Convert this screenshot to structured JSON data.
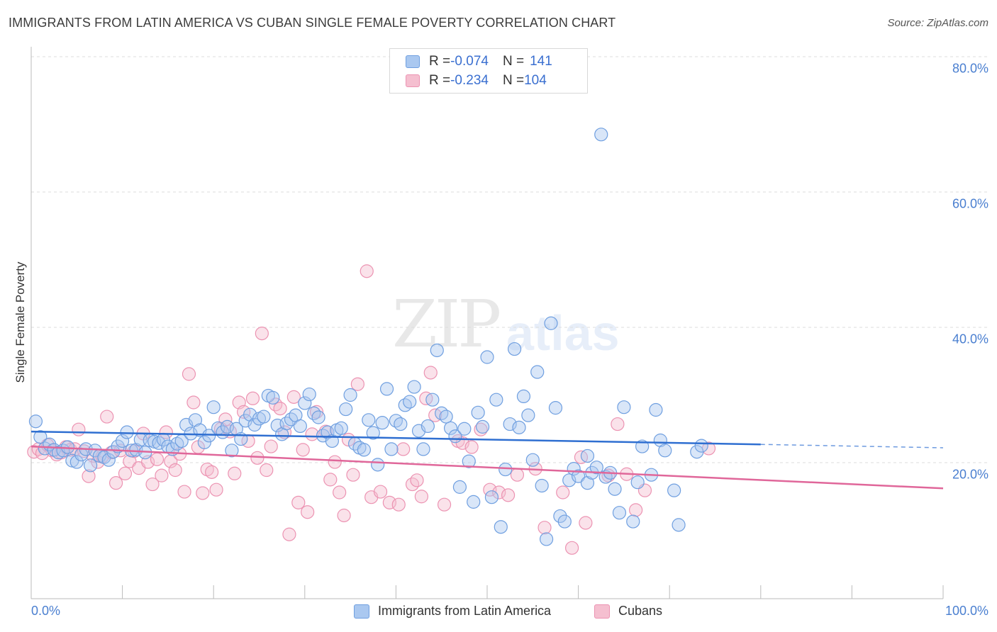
{
  "title": "IMMIGRANTS FROM LATIN AMERICA VS CUBAN SINGLE FEMALE POVERTY CORRELATION CHART",
  "source": "Source: ZipAtlas.com",
  "watermark": {
    "zip": "ZIP",
    "atlas": "atlas"
  },
  "legend_top": {
    "rows": [
      {
        "r_label": "R = ",
        "r_value": "-0.074",
        "n_label": "N = ",
        "n_value": "141"
      },
      {
        "r_label": "R = ",
        "r_value": "-0.234",
        "n_label": "N = ",
        "n_value": "104"
      }
    ]
  },
  "colors": {
    "blue_fill": "#aac8f0",
    "blue_stroke": "#6f9fe0",
    "blue_line": "#2f6fd1",
    "pink_fill": "#f5bfd0",
    "pink_stroke": "#ec93b2",
    "pink_line": "#e0679a",
    "grid": "#dddddd",
    "tick_text": "#4a7fd0"
  },
  "chart_data": {
    "type": "scatter",
    "title": "IMMIGRANTS FROM LATIN AMERICA VS CUBAN SINGLE FEMALE POVERTY CORRELATION CHART",
    "xlabel": "",
    "ylabel": "Single Female Poverty",
    "xlim": [
      0,
      100
    ],
    "ylim": [
      0,
      85
    ],
    "x_tick_labels": [
      "0.0%",
      "100.0%"
    ],
    "y_ticks": [
      20,
      40,
      60,
      80
    ],
    "y_tick_labels": [
      "20.0%",
      "40.0%",
      "60.0%",
      "80.0%"
    ],
    "grid": true,
    "legend_position": "bottom",
    "series": [
      {
        "name": "Immigrants from Latin America",
        "color": "#6f9fe0",
        "trend": {
          "x": [
            0,
            80
          ],
          "y": [
            24.6,
            22.7
          ],
          "dashed_extension_to": [
            100,
            22.2
          ]
        },
        "points": [
          [
            0.5,
            26.1
          ],
          [
            1,
            23.8
          ],
          [
            1.5,
            22.1
          ],
          [
            2,
            22.7
          ],
          [
            2.5,
            21.9
          ],
          [
            3,
            21.5
          ],
          [
            3.5,
            21.8
          ],
          [
            4,
            22.3
          ],
          [
            4.5,
            20.3
          ],
          [
            5,
            20.1
          ],
          [
            5.5,
            21.2
          ],
          [
            6,
            22.0
          ],
          [
            6.5,
            19.6
          ],
          [
            7,
            21.8
          ],
          [
            7.5,
            21.0
          ],
          [
            8,
            20.8
          ],
          [
            8.5,
            20.4
          ],
          [
            9,
            21.6
          ],
          [
            9.5,
            22.4
          ],
          [
            10,
            23.2
          ],
          [
            10.5,
            24.5
          ],
          [
            11,
            21.8
          ],
          [
            11.5,
            21.9
          ],
          [
            12,
            23.4
          ],
          [
            12.5,
            21.5
          ],
          [
            13,
            23.3
          ],
          [
            13.5,
            23.1
          ],
          [
            14,
            22.9
          ],
          [
            14.5,
            23.4
          ],
          [
            15,
            22.4
          ],
          [
            15.5,
            22.0
          ],
          [
            16,
            22.8
          ],
          [
            16.5,
            23.2
          ],
          [
            17,
            25.6
          ],
          [
            17.5,
            24.3
          ],
          [
            18,
            26.3
          ],
          [
            18.5,
            24.8
          ],
          [
            19,
            23.0
          ],
          [
            19.5,
            24.0
          ],
          [
            20,
            28.2
          ],
          [
            20.5,
            25.1
          ],
          [
            21,
            24.5
          ],
          [
            21.5,
            25.3
          ],
          [
            22,
            21.8
          ],
          [
            22.5,
            25.0
          ],
          [
            23,
            23.5
          ],
          [
            23.5,
            26.2
          ],
          [
            24,
            27.1
          ],
          [
            24.5,
            25.6
          ],
          [
            25,
            26.5
          ],
          [
            25.5,
            26.8
          ],
          [
            26,
            29.9
          ],
          [
            26.5,
            29.6
          ],
          [
            27,
            25.5
          ],
          [
            27.5,
            24.2
          ],
          [
            28,
            25.8
          ],
          [
            28.5,
            26.4
          ],
          [
            29,
            27.0
          ],
          [
            29.5,
            25.4
          ],
          [
            30,
            28.8
          ],
          [
            30.5,
            30.1
          ],
          [
            31,
            27.3
          ],
          [
            31.5,
            26.7
          ],
          [
            32,
            24.0
          ],
          [
            32.5,
            24.5
          ],
          [
            33,
            23.2
          ],
          [
            33.5,
            24.8
          ],
          [
            34,
            25.1
          ],
          [
            34.5,
            27.9
          ],
          [
            35,
            30.0
          ],
          [
            35.5,
            22.8
          ],
          [
            36,
            22.2
          ],
          [
            36.5,
            21.9
          ],
          [
            37,
            26.3
          ],
          [
            37.5,
            24.4
          ],
          [
            38,
            19.7
          ],
          [
            38.5,
            25.9
          ],
          [
            39,
            30.9
          ],
          [
            39.5,
            22.0
          ],
          [
            40,
            26.2
          ],
          [
            40.5,
            25.7
          ],
          [
            41,
            28.5
          ],
          [
            41.5,
            29.0
          ],
          [
            42,
            31.2
          ],
          [
            42.5,
            24.7
          ],
          [
            43,
            22.0
          ],
          [
            43.5,
            25.4
          ],
          [
            44,
            29.3
          ],
          [
            44.5,
            36.6
          ],
          [
            45,
            27.3
          ],
          [
            45.5,
            26.8
          ],
          [
            46,
            25.1
          ],
          [
            46.5,
            23.9
          ],
          [
            47,
            16.4
          ],
          [
            47.5,
            25.0
          ],
          [
            48,
            20.2
          ],
          [
            48.5,
            14.2
          ],
          [
            49,
            27.4
          ],
          [
            49.5,
            25.3
          ],
          [
            50,
            35.6
          ],
          [
            50.5,
            14.9
          ],
          [
            51,
            29.3
          ],
          [
            51.5,
            10.5
          ],
          [
            52,
            19.0
          ],
          [
            52.5,
            25.7
          ],
          [
            53,
            36.8
          ],
          [
            53.5,
            25.2
          ],
          [
            54,
            29.8
          ],
          [
            54.5,
            27.0
          ],
          [
            55,
            20.4
          ],
          [
            55.5,
            33.4
          ],
          [
            56,
            16.6
          ],
          [
            56.5,
            8.7
          ],
          [
            57,
            40.6
          ],
          [
            57.5,
            28.1
          ],
          [
            58,
            12.1
          ],
          [
            58.5,
            11.3
          ],
          [
            59,
            17.4
          ],
          [
            59.5,
            19.1
          ],
          [
            60,
            18.0
          ],
          [
            61,
            17.0
          ],
          [
            61.5,
            18.5
          ],
          [
            62,
            19.3
          ],
          [
            62.5,
            68.5
          ],
          [
            63,
            17.9
          ],
          [
            63.5,
            18.5
          ],
          [
            64,
            16.1
          ],
          [
            64.5,
            12.6
          ],
          [
            65,
            28.2
          ],
          [
            66,
            11.3
          ],
          [
            66.5,
            17.1
          ],
          [
            67,
            22.4
          ],
          [
            68,
            18.2
          ],
          [
            68.5,
            27.8
          ],
          [
            69,
            23.3
          ],
          [
            69.5,
            21.8
          ],
          [
            70.5,
            15.9
          ],
          [
            71,
            10.8
          ],
          [
            73,
            21.6
          ],
          [
            73.5,
            22.5
          ],
          [
            61,
            21.0
          ]
        ]
      },
      {
        "name": "Cubans",
        "color": "#ec93b2",
        "trend": {
          "x": [
            0,
            100
          ],
          "y": [
            22.4,
            16.2
          ]
        },
        "points": [
          [
            0.3,
            21.6
          ],
          [
            0.8,
            22.0
          ],
          [
            1.2,
            21.4
          ],
          [
            1.8,
            22.6
          ],
          [
            2.3,
            21.8
          ],
          [
            2.8,
            21.2
          ],
          [
            3.3,
            21.5
          ],
          [
            3.8,
            22.3
          ],
          [
            4.3,
            21.9
          ],
          [
            4.8,
            22.0
          ],
          [
            5.2,
            24.9
          ],
          [
            5.8,
            21.7
          ],
          [
            6.3,
            18.0
          ],
          [
            6.8,
            21.0
          ],
          [
            7.3,
            20.1
          ],
          [
            7.8,
            20.9
          ],
          [
            8.3,
            26.8
          ],
          [
            8.8,
            21.5
          ],
          [
            9.3,
            17.0
          ],
          [
            9.8,
            21.8
          ],
          [
            10.3,
            18.4
          ],
          [
            10.8,
            20.2
          ],
          [
            11.3,
            21.7
          ],
          [
            11.8,
            19.2
          ],
          [
            12.3,
            24.3
          ],
          [
            12.8,
            20.1
          ],
          [
            13.3,
            16.8
          ],
          [
            13.8,
            20.5
          ],
          [
            14.3,
            18.1
          ],
          [
            14.8,
            24.5
          ],
          [
            15.3,
            20.2
          ],
          [
            15.8,
            18.9
          ],
          [
            16.3,
            21.3
          ],
          [
            16.8,
            15.7
          ],
          [
            17.3,
            33.1
          ],
          [
            17.8,
            28.9
          ],
          [
            18.3,
            22.3
          ],
          [
            18.8,
            15.5
          ],
          [
            19.3,
            19.0
          ],
          [
            19.8,
            18.6
          ],
          [
            20.3,
            16.0
          ],
          [
            20.8,
            25.0
          ],
          [
            21.3,
            26.4
          ],
          [
            21.8,
            24.6
          ],
          [
            22.3,
            18.4
          ],
          [
            22.8,
            28.9
          ],
          [
            23.3,
            27.5
          ],
          [
            23.8,
            23.2
          ],
          [
            24.3,
            29.5
          ],
          [
            24.8,
            20.7
          ],
          [
            25.3,
            39.1
          ],
          [
            25.8,
            18.9
          ],
          [
            26.3,
            22.4
          ],
          [
            26.8,
            28.6
          ],
          [
            27.3,
            28.0
          ],
          [
            27.8,
            24.5
          ],
          [
            28.3,
            9.4
          ],
          [
            28.8,
            29.7
          ],
          [
            29.3,
            14.1
          ],
          [
            29.8,
            21.9
          ],
          [
            30.3,
            12.7
          ],
          [
            30.8,
            24.2
          ],
          [
            31.3,
            27.5
          ],
          [
            32.3,
            24.6
          ],
          [
            32.8,
            17.5
          ],
          [
            33.3,
            20.1
          ],
          [
            33.8,
            15.6
          ],
          [
            34.3,
            12.2
          ],
          [
            34.8,
            23.4
          ],
          [
            35.3,
            18.2
          ],
          [
            35.8,
            31.6
          ],
          [
            36.8,
            48.3
          ],
          [
            37.3,
            14.9
          ],
          [
            38.3,
            15.7
          ],
          [
            39.3,
            14.1
          ],
          [
            40.3,
            13.8
          ],
          [
            40.8,
            22.0
          ],
          [
            41.8,
            16.8
          ],
          [
            42.3,
            17.4
          ],
          [
            42.8,
            15.0
          ],
          [
            43.3,
            29.5
          ],
          [
            43.8,
            33.3
          ],
          [
            44.3,
            27.0
          ],
          [
            45.3,
            13.8
          ],
          [
            46.8,
            23.2
          ],
          [
            47.3,
            22.9
          ],
          [
            48.3,
            22.3
          ],
          [
            49.3,
            24.9
          ],
          [
            50.3,
            16.0
          ],
          [
            51.3,
            15.6
          ],
          [
            52.3,
            15.2
          ],
          [
            53.3,
            18.2
          ],
          [
            55.3,
            19.1
          ],
          [
            56.3,
            10.4
          ],
          [
            58.3,
            15.6
          ],
          [
            59.3,
            7.4
          ],
          [
            60.3,
            20.8
          ],
          [
            60.8,
            11.1
          ],
          [
            63.3,
            18.1
          ],
          [
            64.3,
            25.7
          ],
          [
            65.3,
            18.3
          ],
          [
            66.3,
            13.0
          ],
          [
            67.3,
            15.9
          ],
          [
            74.3,
            22.1
          ]
        ]
      }
    ]
  }
}
